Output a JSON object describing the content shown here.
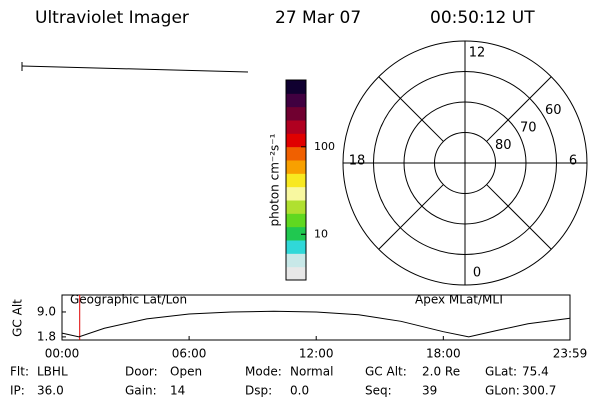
{
  "header": {
    "title": "Ultraviolet Imager",
    "date": "27 Mar 07",
    "time": "00:50:12 UT"
  },
  "colorbar": {
    "label": "photon cm⁻²s⁻¹",
    "log": true,
    "range": [
      3,
      580
    ],
    "ticks": [
      10,
      100
    ],
    "colors": [
      "#e8e8e8",
      "#c8e8e8",
      "#30d8d8",
      "#20c850",
      "#60d820",
      "#b0e030",
      "#f8f8a0",
      "#f8e820",
      "#f8a000",
      "#f06000",
      "#e00000",
      "#b00020",
      "#700030",
      "#400040",
      "#100030"
    ]
  },
  "polar": {
    "lat_range": [
      90,
      50
    ],
    "lat_ticks": [
      60,
      70,
      80
    ],
    "mlt_ticks": [
      {
        "value": 0,
        "label": "0"
      },
      {
        "value": 6,
        "label": "6"
      },
      {
        "value": 12,
        "label": "12"
      },
      {
        "value": 18,
        "label": "18"
      }
    ]
  },
  "chart_data": {
    "type": "line",
    "ylabel": "GC Alt",
    "annotations": [
      "Geographic Lat/Lon",
      "Apex MLat/MLT"
    ],
    "x": [
      0,
      0.8,
      2,
      4,
      6,
      8,
      10,
      12,
      14,
      16,
      18,
      19.2,
      20.5,
      22,
      23.98
    ],
    "series": [
      {
        "color": "#000000",
        "values": [
          2.9,
          1.8,
          4.3,
          7.0,
          8.4,
          9.0,
          9.2,
          9.0,
          8.2,
          6.3,
          3.3,
          1.8,
          3.6,
          5.6,
          7.2
        ]
      }
    ],
    "current_time": 0.836,
    "current_color": "#e00000",
    "xlim": [
      0,
      23.98
    ],
    "xticks": [
      {
        "value": 0,
        "label": "00:00"
      },
      {
        "value": 6,
        "label": "06:00"
      },
      {
        "value": 12,
        "label": "12:00"
      },
      {
        "value": 18,
        "label": "18:00"
      },
      {
        "value": 23.98,
        "label": "23:59"
      }
    ],
    "ylim": [
      0.9,
      13.9
    ],
    "yticks": [
      {
        "value": 1.8,
        "label": "1.8"
      },
      {
        "value": 9,
        "label": "9.0"
      }
    ]
  },
  "status": [
    [
      [
        "Flt:",
        "LBHL"
      ],
      [
        "Door:",
        "Open"
      ],
      [
        "Mode:",
        "Normal"
      ],
      [
        "GC Alt:",
        "2.0 Re"
      ],
      [
        "GLat:",
        "75.4"
      ]
    ],
    [
      [
        "IP:",
        "36.0"
      ],
      [
        "Gain:",
        "14"
      ],
      [
        "Dsp:",
        "0.0"
      ],
      [
        "Seq:",
        "39"
      ],
      [
        "GLon:",
        "300.7"
      ]
    ]
  ]
}
